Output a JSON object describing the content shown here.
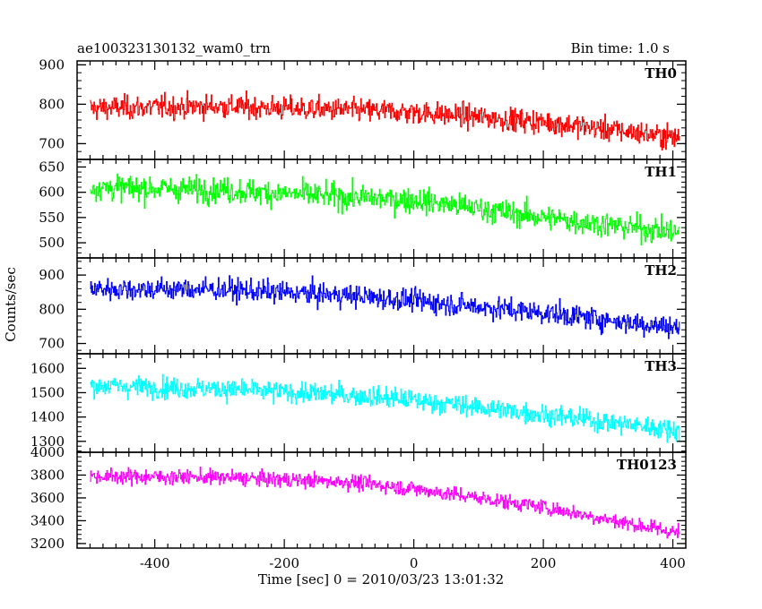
{
  "header": {
    "left_title": "ae100323130132_wam0_trn",
    "right_title": "Bin time: 1.0 s"
  },
  "chart_data": {
    "type": "line",
    "xlabel": "Time [sec] 0 = 2010/03/23 13:01:32",
    "ylabel": "Counts/sec",
    "xlim": [
      -520,
      420
    ],
    "x_ticks": [
      -400,
      -200,
      0,
      200,
      400
    ],
    "x_start": -500,
    "x_end": 410,
    "bin_time": 1.0,
    "panels": [
      {
        "name": "TH0",
        "color": "#ff0000",
        "ylim": [
          660,
          910
        ],
        "y_ticks": [
          700,
          800,
          900
        ],
        "trend": [
          [
            -500,
            790
          ],
          [
            -300,
            795
          ],
          [
            -100,
            785
          ],
          [
            0,
            780
          ],
          [
            200,
            755
          ],
          [
            410,
            715
          ]
        ],
        "noise": 38
      },
      {
        "name": "TH1",
        "color": "#00ff00",
        "ylim": [
          470,
          665
        ],
        "y_ticks": [
          500,
          550,
          600,
          650
        ],
        "trend": [
          [
            -500,
            610
          ],
          [
            -300,
            605
          ],
          [
            -100,
            590
          ],
          [
            0,
            585
          ],
          [
            200,
            550
          ],
          [
            410,
            520
          ]
        ],
        "noise": 32
      },
      {
        "name": "TH2",
        "color": "#0000ff",
        "ylim": [
          670,
          950
        ],
        "y_ticks": [
          700,
          800,
          900
        ],
        "trend": [
          [
            -500,
            860
          ],
          [
            -300,
            858
          ],
          [
            -100,
            840
          ],
          [
            0,
            825
          ],
          [
            200,
            790
          ],
          [
            410,
            745
          ]
        ],
        "noise": 42
      },
      {
        "name": "TH3",
        "color": "#00ffff",
        "ylim": [
          1255,
          1660
        ],
        "y_ticks": [
          1300,
          1400,
          1500,
          1600
        ],
        "trend": [
          [
            -500,
            1530
          ],
          [
            -300,
            1515
          ],
          [
            -100,
            1490
          ],
          [
            0,
            1470
          ],
          [
            200,
            1410
          ],
          [
            410,
            1345
          ]
        ],
        "noise": 55
      },
      {
        "name": "TH0123",
        "color": "#ff00ff",
        "ylim": [
          3160,
          4000
        ],
        "y_ticks": [
          3200,
          3400,
          3600,
          3800,
          4000
        ],
        "trend": [
          [
            -500,
            3790
          ],
          [
            -300,
            3780
          ],
          [
            -100,
            3740
          ],
          [
            0,
            3680
          ],
          [
            200,
            3520
          ],
          [
            410,
            3290
          ]
        ],
        "noise": 85
      }
    ]
  }
}
